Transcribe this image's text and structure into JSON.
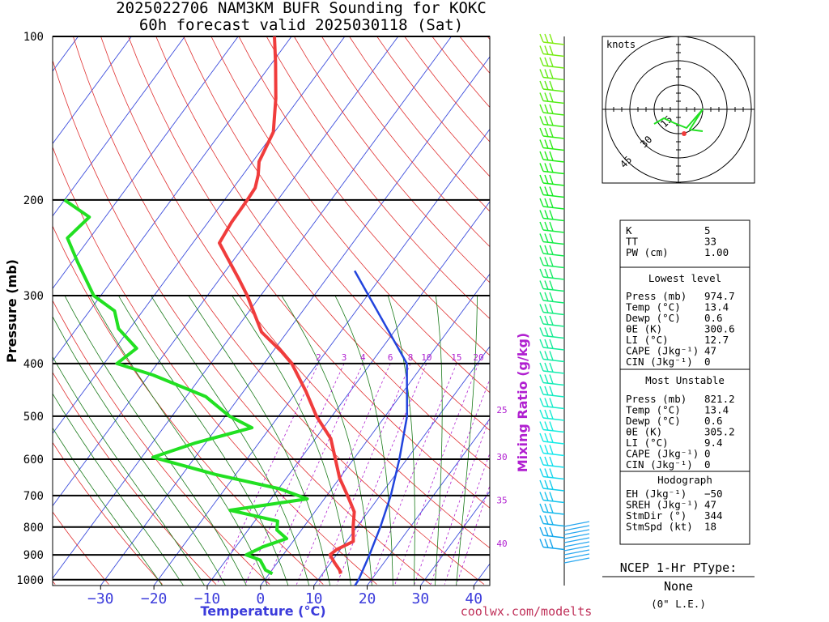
{
  "title": {
    "line1": "2025022706 NAM3KM BUFR Sounding for KOKC",
    "line2": "60h forecast valid 2025030118 (Sat)"
  },
  "axes": {
    "y_label": "Pressure (mb)",
    "x_label": "Temperature (°C)",
    "mixing_ratio_label": "Mixing Ratio (g/kg)",
    "credit": "coolwx.com/modelts"
  },
  "colors": {
    "temperature": "#f03c3c",
    "dewpoint": "#22e022",
    "parcel": "#2244dd",
    "isotherm": "#3c4cdc",
    "dry_adiabat": "#e03030",
    "moist_adiabat": "#1a7a1a",
    "mixing_ratio": "#b01fd0",
    "axis_text": "#3b3bdb"
  },
  "chart_data": {
    "type": "skew-t",
    "pressure_ticks": [
      100,
      200,
      300,
      400,
      500,
      600,
      700,
      800,
      900,
      1000
    ],
    "pressure_tick_labels": [
      "100",
      "200",
      "300",
      "400",
      "500",
      "600",
      "700",
      "800",
      "900",
      "1000"
    ],
    "pressure_range_mb": [
      100,
      1025
    ],
    "temperature_ticks": [
      -30,
      -20,
      -10,
      0,
      10,
      20,
      30,
      40
    ],
    "temperature_tick_labels": [
      "−30",
      "−20",
      "−10",
      "0",
      "10",
      "20",
      "30",
      "40"
    ],
    "temperature_range_at_bottom_c": [
      -39,
      43
    ],
    "skew_deg_per_log_decade": 75,
    "log_scale_y": true,
    "mixing_ratio_values": [
      "2",
      "3",
      "4",
      "6",
      "8",
      "10",
      "15",
      "20",
      "25",
      "30",
      "35",
      "40"
    ],
    "mixing_ratio_top_row": [
      "2",
      "3",
      "4",
      "6",
      "8",
      "10",
      "15",
      "20"
    ],
    "mixing_ratio_side_labels": [
      {
        "label": "25",
        "p": 487
      },
      {
        "label": "30",
        "p": 594
      },
      {
        "label": "35",
        "p": 713
      },
      {
        "label": "40",
        "p": 858
      }
    ],
    "series": [
      {
        "name": "Temperature",
        "points": [
          {
            "p": 100,
            "t": -73.2
          },
          {
            "p": 112,
            "t": -69.3
          },
          {
            "p": 130,
            "t": -64.4
          },
          {
            "p": 150,
            "t": -60.2
          },
          {
            "p": 170,
            "t": -58.8
          },
          {
            "p": 180,
            "t": -57.1
          },
          {
            "p": 190,
            "t": -55.9
          },
          {
            "p": 200,
            "t": -55.7
          },
          {
            "p": 220,
            "t": -55.6
          },
          {
            "p": 240,
            "t": -55.0
          },
          {
            "p": 250,
            "t": -52.7
          },
          {
            "p": 280,
            "t": -46.3
          },
          {
            "p": 300,
            "t": -42.5
          },
          {
            "p": 350,
            "t": -34.8
          },
          {
            "p": 380,
            "t": -28.4
          },
          {
            "p": 400,
            "t": -24.8
          },
          {
            "p": 450,
            "t": -18.3
          },
          {
            "p": 500,
            "t": -12.9
          },
          {
            "p": 550,
            "t": -7.1
          },
          {
            "p": 600,
            "t": -3.4
          },
          {
            "p": 650,
            "t": 0.0
          },
          {
            "p": 700,
            "t": 3.9
          },
          {
            "p": 750,
            "t": 7.4
          },
          {
            "p": 800,
            "t": 9.3
          },
          {
            "p": 850,
            "t": 11.3
          },
          {
            "p": 880,
            "t": 9.3
          },
          {
            "p": 900,
            "t": 8.8
          },
          {
            "p": 930,
            "t": 10.7
          },
          {
            "p": 960,
            "t": 12.7
          },
          {
            "p": 975,
            "t": 13.4
          }
        ]
      },
      {
        "name": "Dewpoint",
        "points": [
          {
            "p": 200,
            "t": -90.0
          },
          {
            "p": 215,
            "t": -83.0
          },
          {
            "p": 235,
            "t": -84.2
          },
          {
            "p": 260,
            "t": -79.0
          },
          {
            "p": 300,
            "t": -71.3
          },
          {
            "p": 320,
            "t": -65.3
          },
          {
            "p": 345,
            "t": -62.1
          },
          {
            "p": 375,
            "t": -56.0
          },
          {
            "p": 400,
            "t": -57.6
          },
          {
            "p": 420,
            "t": -49.2
          },
          {
            "p": 460,
            "t": -36.4
          },
          {
            "p": 500,
            "t": -29.2
          },
          {
            "p": 525,
            "t": -23.4
          },
          {
            "p": 560,
            "t": -31.9
          },
          {
            "p": 595,
            "t": -37.9
          },
          {
            "p": 640,
            "t": -23.8
          },
          {
            "p": 680,
            "t": -9.8
          },
          {
            "p": 710,
            "t": -3.2
          },
          {
            "p": 745,
            "t": -16.1
          },
          {
            "p": 780,
            "t": -5.7
          },
          {
            "p": 810,
            "t": -4.6
          },
          {
            "p": 840,
            "t": -1.6
          },
          {
            "p": 870,
            "t": -4.9
          },
          {
            "p": 900,
            "t": -6.9
          },
          {
            "p": 920,
            "t": -3.6
          },
          {
            "p": 960,
            "t": -1.2
          },
          {
            "p": 975,
            "t": 0.6
          }
        ]
      },
      {
        "name": "Parcel",
        "points": [
          {
            "p": 270,
            "t": -25.8
          },
          {
            "p": 400,
            "t": -3.2
          },
          {
            "p": 500,
            "t": 4.1
          },
          {
            "p": 600,
            "t": 8.6
          },
          {
            "p": 700,
            "t": 12.0
          },
          {
            "p": 800,
            "t": 14.4
          },
          {
            "p": 900,
            "t": 16.2
          },
          {
            "p": 1000,
            "t": 17.6
          },
          {
            "p": 1025,
            "t": 17.7
          }
        ]
      }
    ]
  },
  "hodograph": {
    "unit_label": "knots",
    "ring_labels": [
      "15",
      "30",
      "45"
    ]
  },
  "indices": {
    "top": [
      {
        "label": "K",
        "value": "5"
      },
      {
        "label": "TT",
        "value": "33"
      },
      {
        "label": "PW (cm)",
        "value": "1.00"
      }
    ],
    "lowest_level": {
      "header": "Lowest level",
      "rows": [
        {
          "label": "Press (mb)",
          "value": "974.7"
        },
        {
          "label": "Temp (°C)",
          "value": "13.4"
        },
        {
          "label": "Dewp (°C)",
          "value": "0.6"
        },
        {
          "label": "θE (K)",
          "value": "300.6"
        },
        {
          "label": "LI (°C)",
          "value": "12.7"
        },
        {
          "label": "CAPE (Jkg⁻¹)",
          "value": "47"
        },
        {
          "label": "CIN (Jkg⁻¹)",
          "value": "0"
        }
      ]
    },
    "most_unstable": {
      "header": "Most Unstable",
      "rows": [
        {
          "label": "Press (mb)",
          "value": "821.2"
        },
        {
          "label": "Temp (°C)",
          "value": "13.4"
        },
        {
          "label": "Dewp (°C)",
          "value": "0.6"
        },
        {
          "label": "θE (K)",
          "value": "305.2"
        },
        {
          "label": "LI (°C)",
          "value": "9.4"
        },
        {
          "label": "CAPE (Jkg⁻¹)",
          "value": "0"
        },
        {
          "label": "CIN (Jkg⁻¹)",
          "value": "0"
        }
      ]
    },
    "hodograph": {
      "header": "Hodograph",
      "rows": [
        {
          "label": "EH (Jkg⁻¹)",
          "value": "−50"
        },
        {
          "label": "SREH (Jkg⁻¹)",
          "value": "47"
        },
        {
          "label": "StmDir (°)",
          "value": "344"
        },
        {
          "label": "StmSpd (kt)",
          "value": "18"
        }
      ]
    }
  },
  "ptype": {
    "header": "NCEP 1-Hr PType:",
    "value": "None",
    "amount": "(0\" L.E.)"
  }
}
